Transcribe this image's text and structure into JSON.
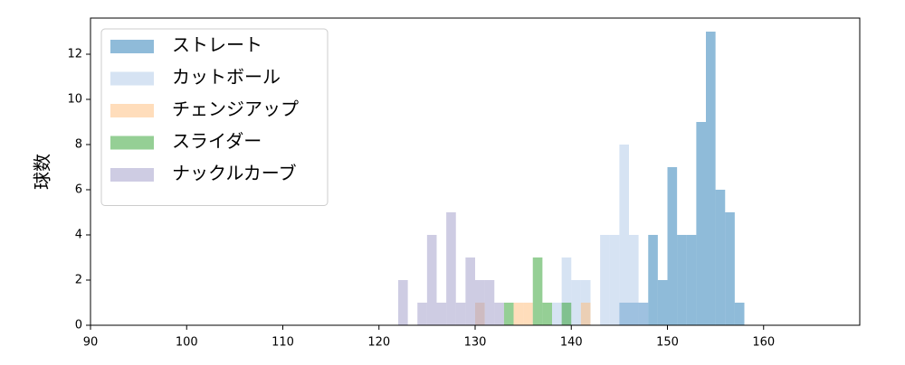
{
  "chart_data": {
    "type": "histogram",
    "ylabel": "球数",
    "xlim": [
      90,
      170
    ],
    "ylim": [
      0,
      13.6
    ],
    "xticks": [
      90,
      100,
      110,
      120,
      130,
      140,
      150,
      160
    ],
    "yticks": [
      0,
      2,
      4,
      6,
      8,
      10,
      12
    ],
    "legend": "upper left",
    "opacity": 0.5,
    "series": [
      {
        "name": "ストレート",
        "color": "#1f77b4",
        "bins": [
          145,
          146,
          147,
          148,
          149,
          150,
          151,
          152,
          153,
          154,
          155,
          156,
          157,
          158
        ],
        "values": [
          1,
          1,
          1,
          4,
          2,
          7,
          4,
          4,
          9,
          13,
          6,
          5,
          1
        ]
      },
      {
        "name": "カットボール",
        "color": "#aec7e8",
        "bins": [
          138,
          139,
          140,
          141,
          142,
          143,
          144,
          145,
          146,
          147,
          148
        ],
        "values": [
          1,
          3,
          2,
          2,
          0,
          4,
          4,
          8,
          4,
          1
        ]
      },
      {
        "name": "チェンジアップ",
        "color": "#ffbb78",
        "bins": [
          130,
          131,
          132,
          133,
          134,
          135,
          136,
          137,
          138,
          139,
          140,
          141,
          142
        ],
        "values": [
          1,
          0,
          0,
          0,
          1,
          1,
          0,
          0,
          0,
          0,
          0,
          1
        ]
      },
      {
        "name": "スライダー",
        "color": "#2ca02c",
        "bins": [
          133,
          134,
          135,
          136,
          137,
          138,
          139,
          140
        ],
        "values": [
          1,
          0,
          0,
          3,
          1,
          0,
          1
        ]
      },
      {
        "name": "ナックルカーブ",
        "color": "#9e9ac8",
        "bins": [
          122,
          123,
          124,
          125,
          126,
          127,
          128,
          129,
          130,
          131,
          132,
          133
        ],
        "values": [
          2,
          0,
          1,
          4,
          1,
          5,
          1,
          3,
          2,
          2,
          1
        ]
      }
    ]
  }
}
